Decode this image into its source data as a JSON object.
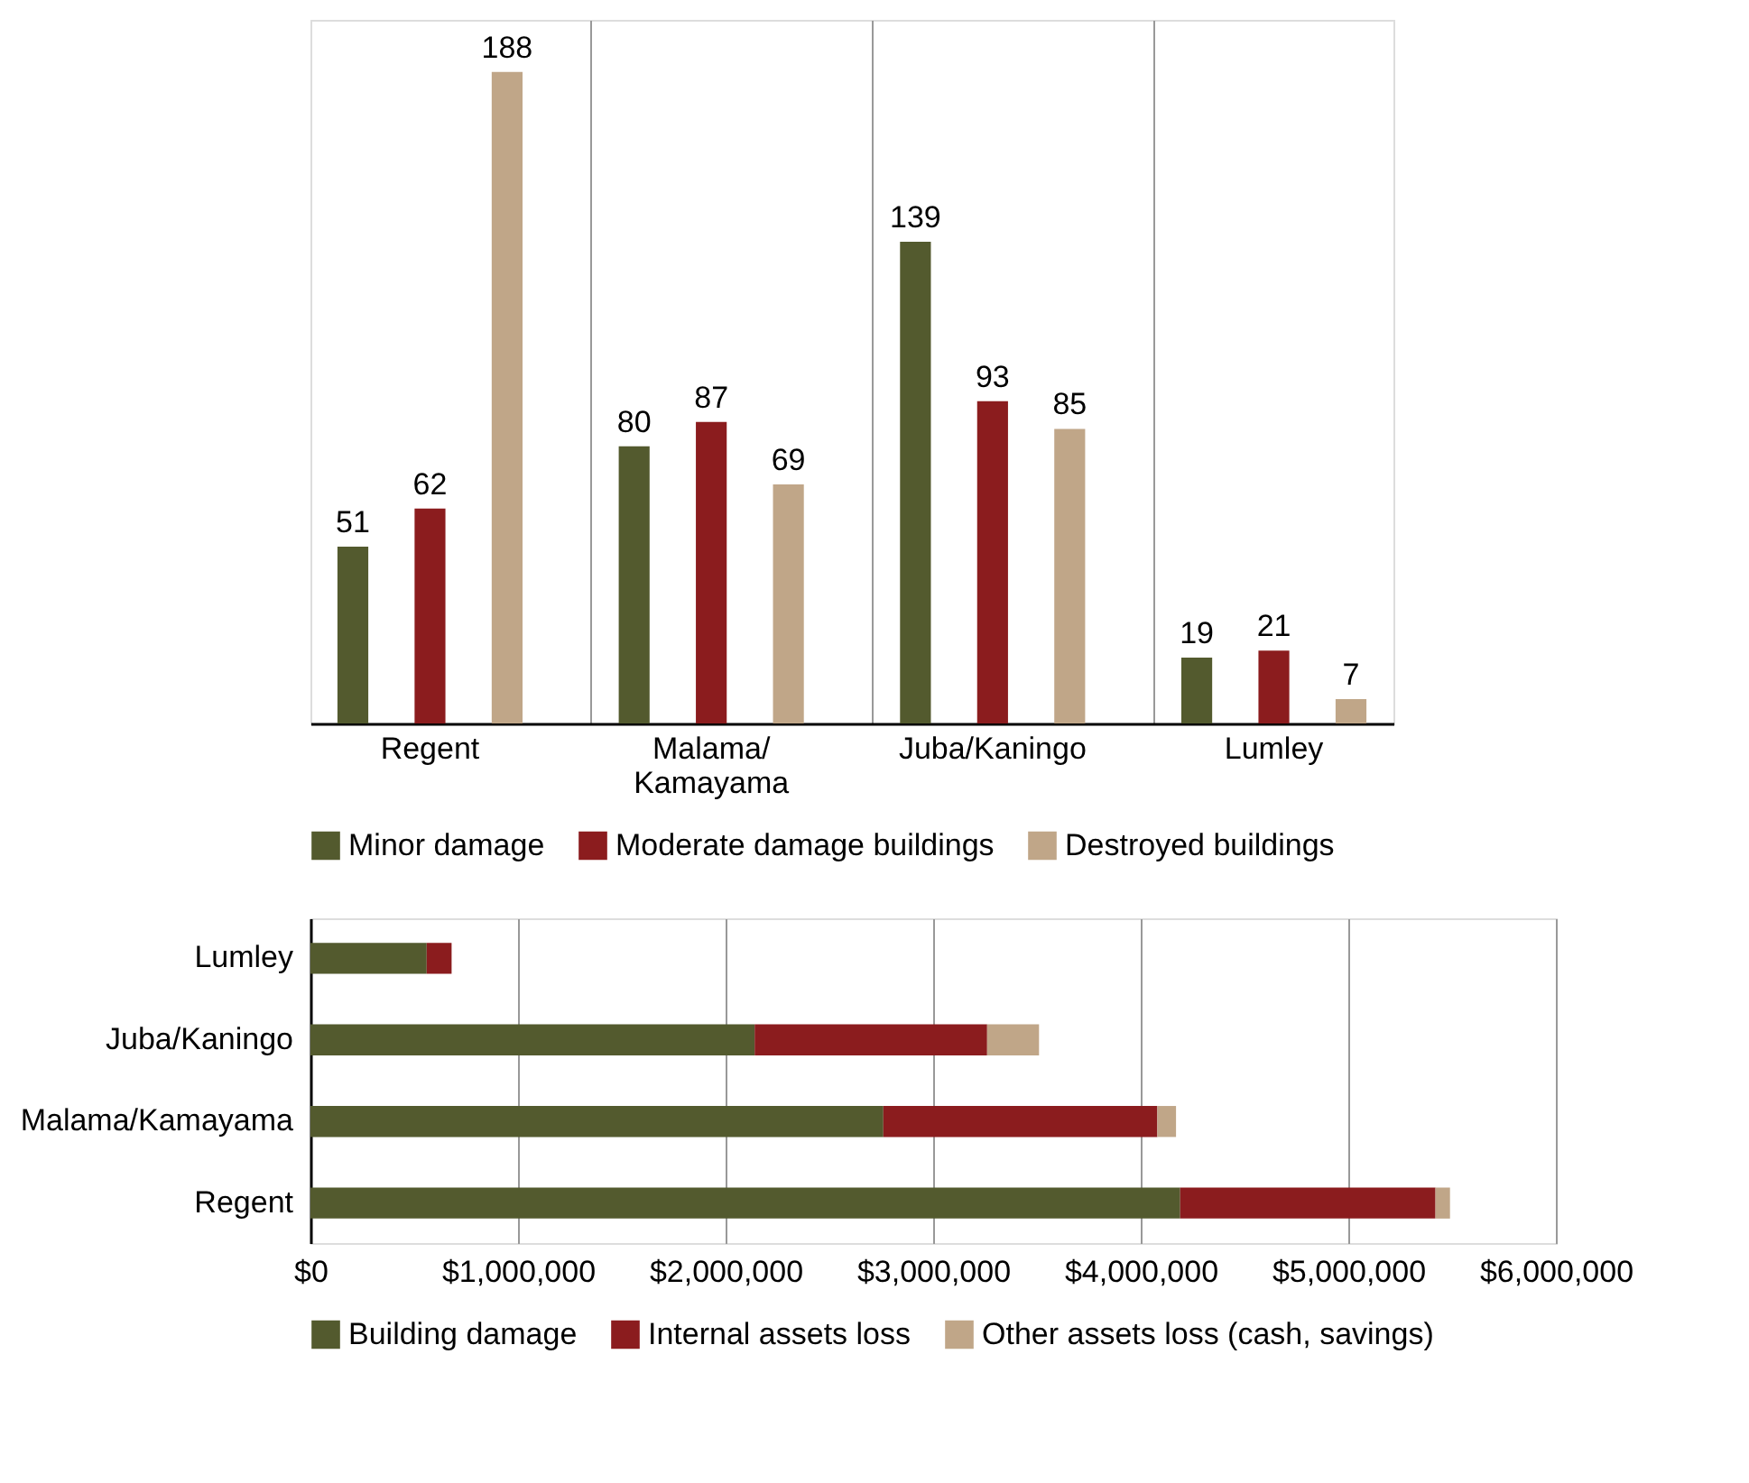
{
  "chart_data": [
    {
      "type": "bar",
      "categories": [
        "Regent",
        "Malama/\nKamayama",
        "Juba/Kaningo",
        "Lumley"
      ],
      "series": [
        {
          "name": "Minor damage",
          "color": "#535a2e",
          "values": [
            51,
            80,
            139,
            19
          ]
        },
        {
          "name": "Moderate damage buildings",
          "color": "#8b1c1e",
          "values": [
            62,
            87,
            93,
            21
          ]
        },
        {
          "name": "Destroyed buildings",
          "color": "#c0a688",
          "values": [
            188,
            69,
            85,
            7
          ]
        }
      ],
      "data_labels": true,
      "grid": "x",
      "legend": "bottom",
      "tick_labels": "x"
    },
    {
      "type": "bar",
      "orientation": "horizontal",
      "stacked": true,
      "categories": [
        "Lumley",
        "Juba/Kaningo",
        "Malama/Kamayama",
        "Regent"
      ],
      "series": [
        {
          "name": "Building damage",
          "color": "#535a2e",
          "values": [
            560000,
            2140000,
            2760000,
            4190000
          ]
        },
        {
          "name": "Internal assets loss",
          "color": "#8b1c1e",
          "values": [
            120000,
            1120000,
            1320000,
            1230000
          ]
        },
        {
          "name": "Other assets loss (cash, savings)",
          "color": "#c0a688",
          "values": [
            0,
            250000,
            90000,
            70000
          ]
        }
      ],
      "xlim": [
        0,
        6000000
      ],
      "xticks": [
        {
          "value": 0,
          "label": "$0"
        },
        {
          "value": 1000000,
          "label": "$1,000,000"
        },
        {
          "value": 2000000,
          "label": "$2,000,000"
        },
        {
          "value": 3000000,
          "label": "$3,000,000"
        },
        {
          "value": 4000000,
          "label": "$4,000,000"
        },
        {
          "value": 5000000,
          "label": "$5,000,000"
        },
        {
          "value": 6000000,
          "label": "$6,000,000"
        }
      ],
      "grid": "x",
      "legend": "bottom"
    }
  ]
}
